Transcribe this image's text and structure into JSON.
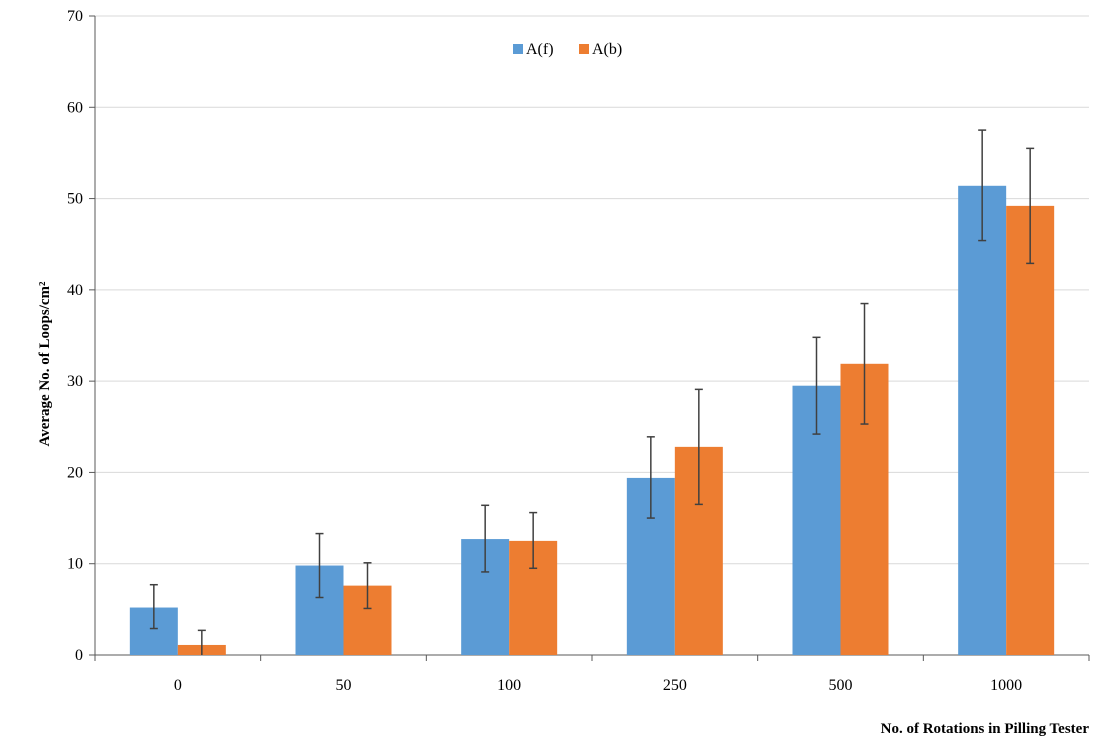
{
  "chart_data": {
    "type": "bar",
    "title": "",
    "xlabel": "No. of Rotations in Pilling Tester",
    "ylabel": "Average No. of Loops/cm²",
    "categories": [
      "0",
      "50",
      "100",
      "250",
      "500",
      "1000"
    ],
    "ylim": [
      0,
      70
    ],
    "yticks": [
      0,
      10,
      20,
      30,
      40,
      50,
      60,
      70
    ],
    "grid": true,
    "legend_position": "top-center",
    "series": [
      {
        "name": "A(f)",
        "color": "#5B9BD5",
        "values": [
          5.2,
          9.8,
          12.7,
          19.4,
          29.5,
          51.4
        ],
        "error_low": [
          2.9,
          6.3,
          9.1,
          15.0,
          24.2,
          45.4
        ],
        "error_high": [
          7.7,
          13.3,
          16.4,
          23.9,
          34.8,
          57.5
        ]
      },
      {
        "name": "A(b)",
        "color": "#ED7D31",
        "values": [
          1.1,
          7.6,
          12.5,
          22.8,
          31.9,
          49.2
        ],
        "error_low": [
          -0.6,
          5.1,
          9.5,
          16.5,
          25.3,
          42.9
        ],
        "error_high": [
          2.7,
          10.1,
          15.6,
          29.1,
          38.5,
          55.5
        ]
      }
    ],
    "error_bar_color": "#404040",
    "gridline_color": "#D9D9D9",
    "axis_color": "#595959"
  }
}
